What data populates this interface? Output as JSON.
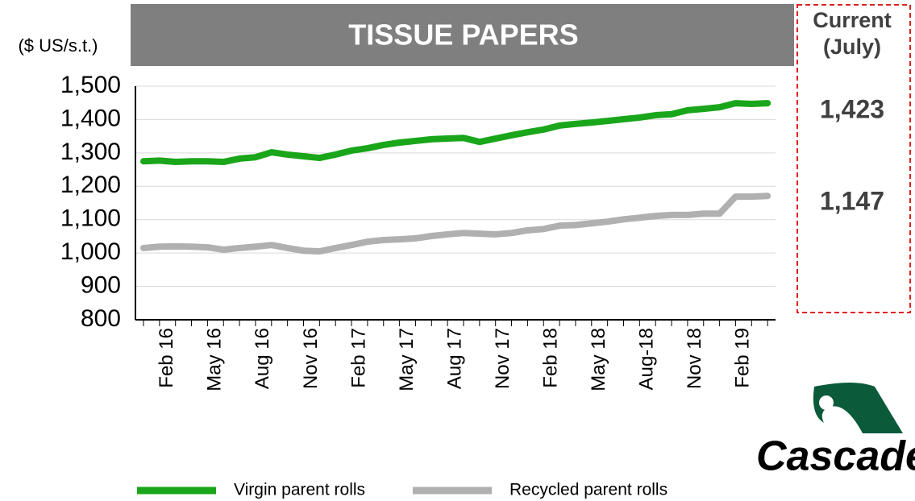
{
  "chart_data": {
    "type": "line",
    "title": "TISSUE PAPERS",
    "y_label": "($ US/s.t.)",
    "categories": [
      null,
      "Feb 16",
      null,
      null,
      "May 16",
      null,
      null,
      "Aug 16",
      null,
      null,
      "Nov 16",
      null,
      null,
      "Feb 17",
      null,
      null,
      "May 17",
      null,
      null,
      "Aug 17",
      null,
      null,
      "Nov 17",
      null,
      null,
      "Feb 18",
      null,
      null,
      "May 18",
      null,
      null,
      "Aug-18",
      null,
      null,
      "Nov 18",
      null,
      null,
      "Feb 19",
      null,
      null
    ],
    "series": [
      {
        "name": "Virgin parent rolls",
        "color": "#1aa61a",
        "values": [
          1275,
          1277,
          1273,
          1275,
          1275,
          1273,
          1283,
          1287,
          1302,
          1295,
          1290,
          1285,
          1295,
          1307,
          1314,
          1324,
          1331,
          1336,
          1341,
          1343,
          1345,
          1333,
          1343,
          1353,
          1362,
          1370,
          1382,
          1387,
          1391,
          1396,
          1401,
          1406,
          1413,
          1416,
          1428,
          1432,
          1437,
          1449,
          1447,
          1449
        ]
      },
      {
        "name": "Recycled parent rolls",
        "color": "#b0b0b0",
        "values": [
          1015,
          1019,
          1020,
          1019,
          1017,
          1010,
          1015,
          1019,
          1024,
          1015,
          1007,
          1005,
          1015,
          1024,
          1034,
          1039,
          1041,
          1044,
          1051,
          1056,
          1060,
          1058,
          1056,
          1060,
          1068,
          1072,
          1082,
          1084,
          1089,
          1094,
          1101,
          1106,
          1111,
          1114,
          1114,
          1118,
          1118,
          1169,
          1169,
          1171
        ]
      }
    ],
    "ylim": [
      800,
      1500
    ],
    "yticks": [
      {
        "value": 800,
        "label": "800"
      },
      {
        "value": 900,
        "label": "900"
      },
      {
        "value": 1000,
        "label": "1,000"
      },
      {
        "value": 1100,
        "label": "1,100"
      },
      {
        "value": 1200,
        "label": "1,200"
      },
      {
        "value": 1300,
        "label": "1,300"
      },
      {
        "value": 1400,
        "label": "1,400"
      },
      {
        "value": 1500,
        "label": "1,500"
      }
    ],
    "grid": true,
    "current_panel": {
      "heading": [
        "Current",
        "(July)"
      ],
      "texts": [
        "1,423",
        "1,147"
      ]
    },
    "brand": "Cascades"
  }
}
